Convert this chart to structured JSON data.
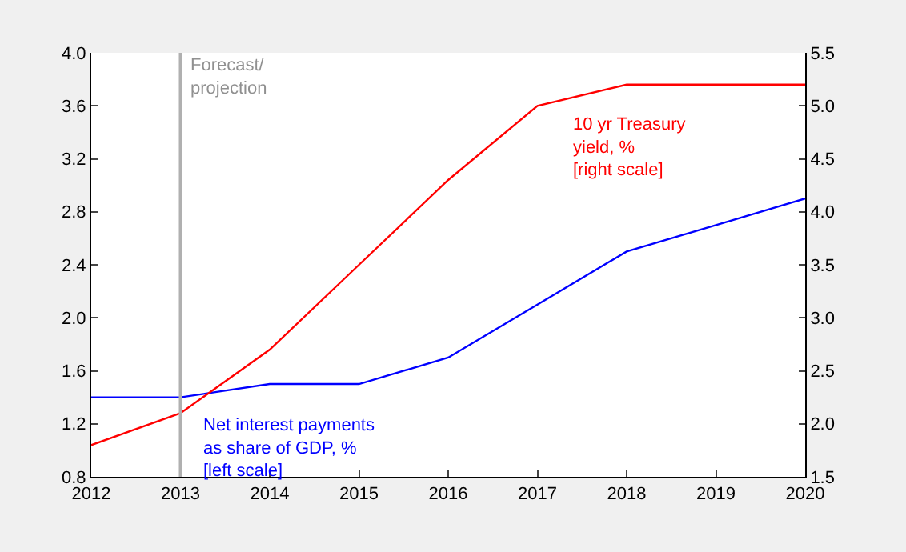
{
  "chart_data": {
    "type": "line",
    "x": [
      2012,
      2013,
      2014,
      2015,
      2016,
      2017,
      2018,
      2019,
      2020
    ],
    "series": [
      {
        "name": "Net interest payments\nas share of GDP, %\n[left scale]",
        "color": "#0000ff",
        "values": [
          1.4,
          1.4,
          1.5,
          1.5,
          1.7,
          2.1,
          2.5,
          2.7,
          2.9
        ]
      },
      {
        "name": "10 yr Treasury\nyield, %\n[right scale]",
        "color": "#ff0000",
        "axis": "y2",
        "values": [
          1.8,
          2.1,
          2.7,
          3.5,
          4.3,
          5.0,
          5.2,
          5.2,
          5.2
        ]
      }
    ],
    "xlim": [
      2012,
      2020
    ],
    "xticks": [
      2012,
      2013,
      2014,
      2015,
      2016,
      2017,
      2018,
      2019,
      2020
    ],
    "ylim": [
      0.8,
      4.0
    ],
    "yticks": [
      0.8,
      1.2,
      1.6,
      {
        "value": 2,
        "label": "2.0"
      },
      2.4,
      2.8,
      3.2,
      3.6,
      {
        "value": 4,
        "label": "4.0"
      }
    ],
    "y2lim": [
      1.5,
      5.5
    ],
    "y2ticks": [
      1.5,
      {
        "value": 2,
        "label": "2.0"
      },
      2.5,
      {
        "value": 3,
        "label": "3.0"
      },
      3.5,
      {
        "value": 4,
        "label": "4.0"
      },
      4.5,
      {
        "value": 5,
        "label": "5.0"
      },
      5.5
    ],
    "ref_lines": [
      {
        "axis": "x",
        "value": 2013,
        "label": "Forecast/\nprojection",
        "color": "#b0b0b0"
      }
    ],
    "grid": false,
    "legend": false
  }
}
